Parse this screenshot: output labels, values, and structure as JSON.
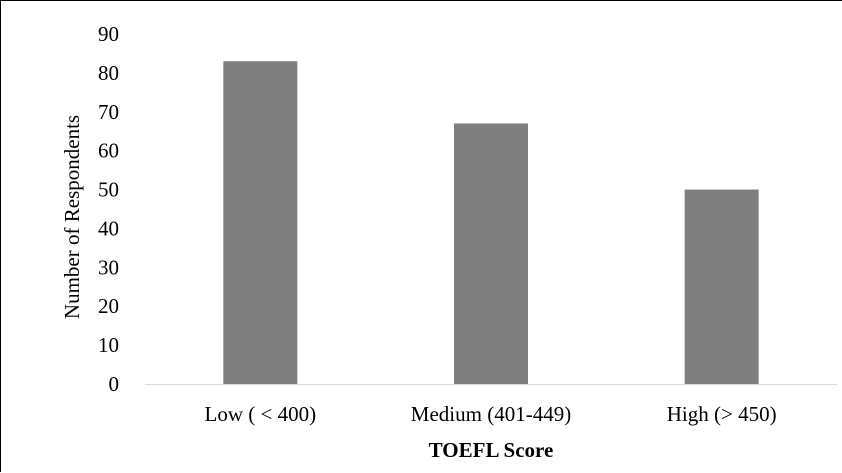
{
  "chart_data": {
    "type": "bar",
    "title": "",
    "xlabel": "TOEFL Score",
    "ylabel": "Number of Respondents",
    "categories": [
      "Low ( < 400)",
      "Medium (401-449)",
      "High (> 450)"
    ],
    "values": [
      83,
      67,
      50
    ],
    "ylim": [
      0,
      90
    ],
    "yticks": [
      0,
      10,
      20,
      30,
      40,
      50,
      60,
      70,
      80,
      90
    ],
    "grid": false,
    "legend": "none",
    "bar_color": "#7f7f7f",
    "axis_color": "#d9d9d9"
  }
}
